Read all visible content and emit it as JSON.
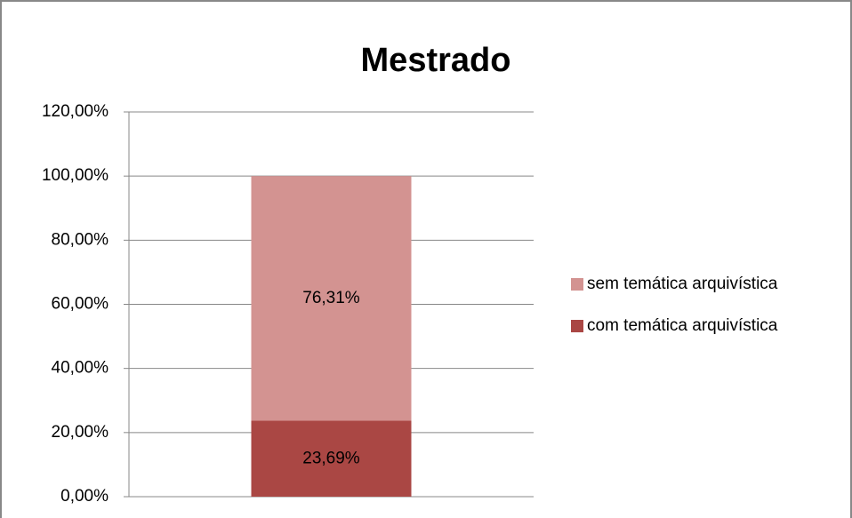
{
  "chart_data": {
    "type": "stacked_bar",
    "title": "Mestrado",
    "categories": [
      null
    ],
    "series": [
      {
        "name": "com temática arquivística",
        "color": "#aa4744",
        "values": [
          23.69
        ],
        "value_labels": [
          "23,69%"
        ]
      },
      {
        "name": "sem temática arquivística",
        "color": "#d39391",
        "values": [
          76.31
        ],
        "value_labels": [
          "76,31%"
        ]
      }
    ],
    "ylim": [
      0,
      120
    ],
    "yticks": [
      {
        "value": 0,
        "label": "0,00%"
      },
      {
        "value": 20,
        "label": "20,00%"
      },
      {
        "value": 40,
        "label": "40,00%"
      },
      {
        "value": 60,
        "label": "60,00%"
      },
      {
        "value": 80,
        "label": "80,00%"
      },
      {
        "value": 100,
        "label": "100,00%"
      },
      {
        "value": 120,
        "label": "120,00%"
      }
    ],
    "grid": true,
    "legend": "right"
  }
}
